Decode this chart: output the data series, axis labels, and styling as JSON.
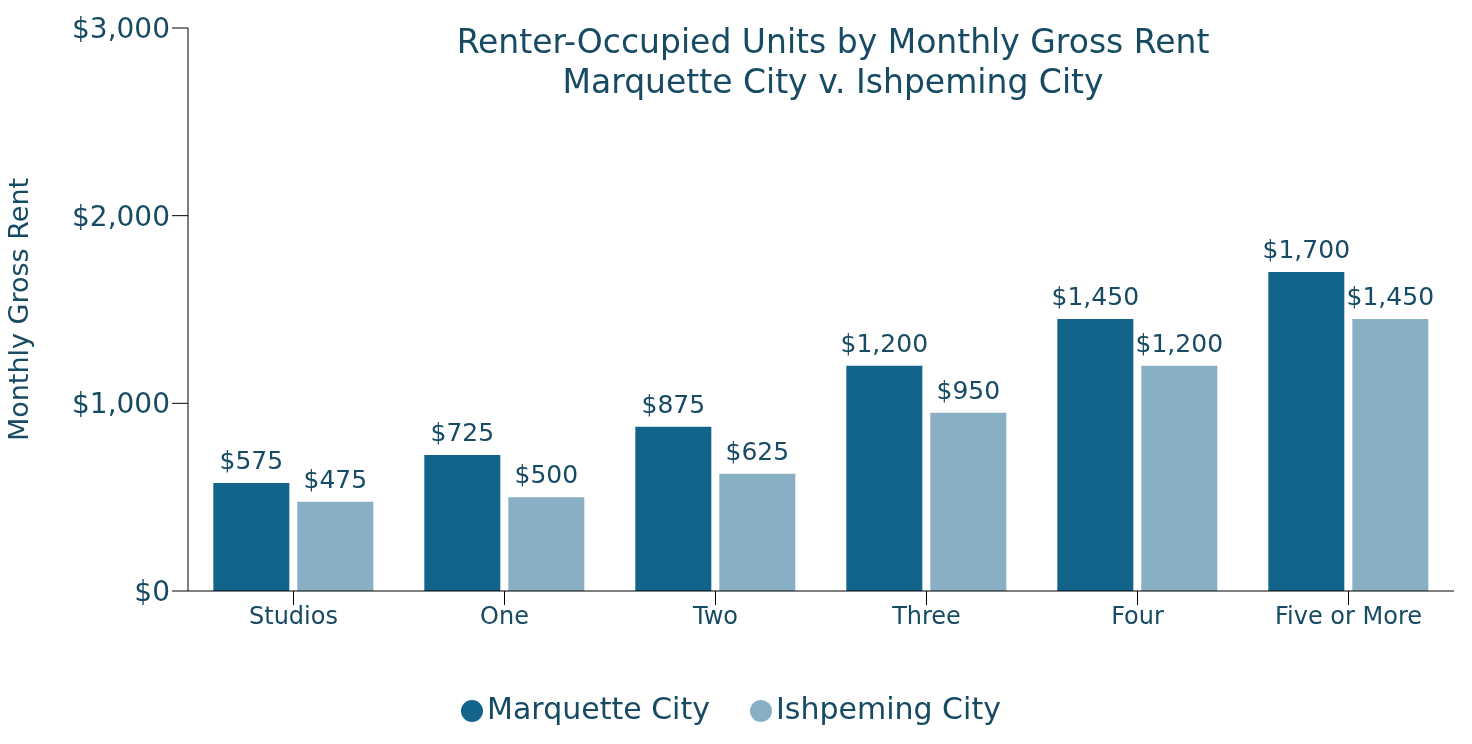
{
  "chart_data": {
    "type": "bar",
    "title": "Renter-Occupied Units by Monthly Gross Rent\nMarquette City v. Ishpeming City",
    "ylabel": "Monthly Gross Rent",
    "categories": [
      "Studios",
      "One",
      "Two",
      "Three",
      "Four",
      "Five or More"
    ],
    "series": [
      {
        "name": "Marquette City",
        "color": "#12648a",
        "values": [
          575,
          725,
          875,
          1200,
          1450,
          1700
        ],
        "value_labels": [
          "$575",
          "$725",
          "$875",
          "$1,200",
          "$1,450",
          "$1,700"
        ]
      },
      {
        "name": "Ishpeming City",
        "color": "#88afc4",
        "values": [
          475,
          500,
          625,
          950,
          1200,
          1450
        ],
        "value_labels": [
          "$475",
          "$500",
          "$625",
          "$950",
          "$1,200",
          "$1,450"
        ]
      }
    ],
    "ylim": [
      0,
      3000
    ],
    "yticks": [
      {
        "value": 0,
        "label": "$0"
      },
      {
        "value": 1000,
        "label": "$1,000"
      },
      {
        "value": 2000,
        "label": "$2,000"
      },
      {
        "value": 3000,
        "label": "$3,000"
      }
    ],
    "grid": false,
    "legend": "bottom"
  }
}
